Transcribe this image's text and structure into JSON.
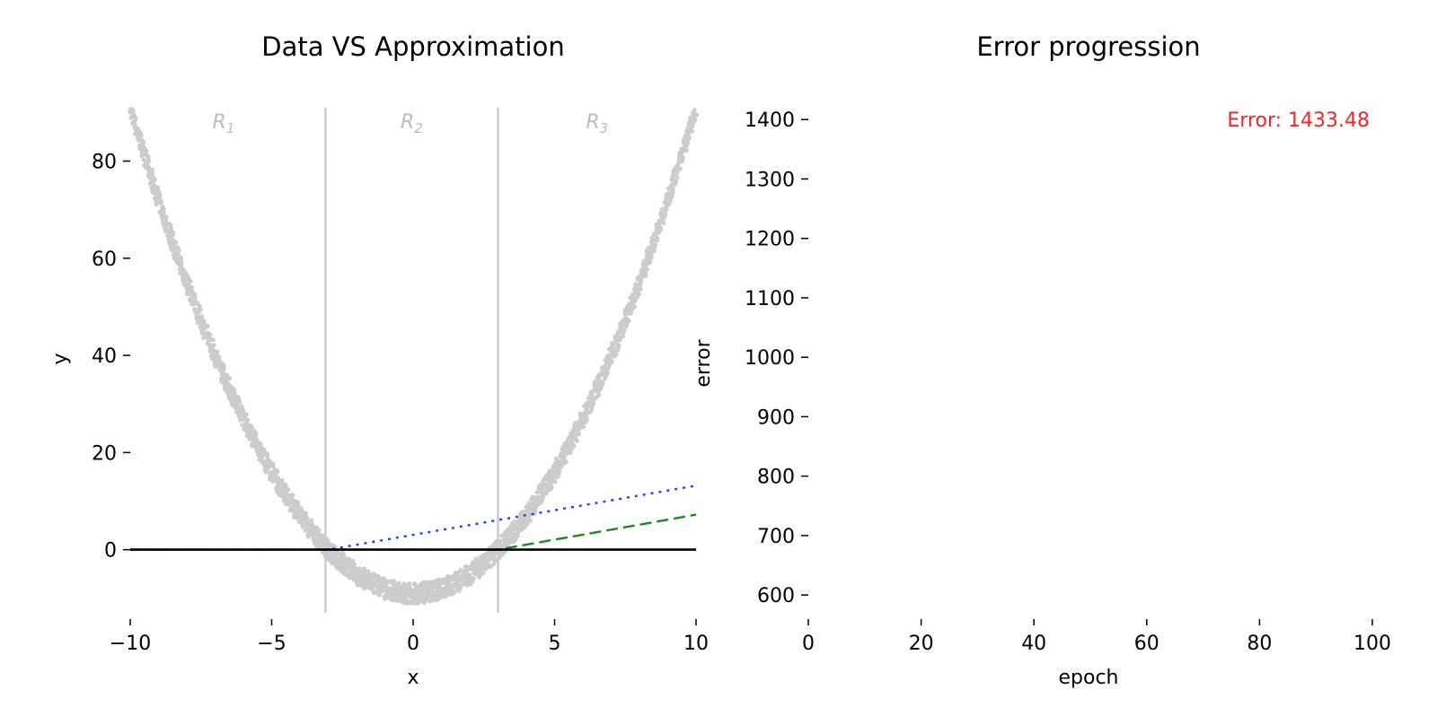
{
  "chart_data": [
    {
      "type": "line",
      "title": "Data VS Approximation",
      "xlabel": "x",
      "ylabel": "y",
      "xlim": [
        -10,
        10
      ],
      "ylim": [
        -13,
        91
      ],
      "xticks": [
        -10,
        -5,
        0,
        5,
        10
      ],
      "xtick_labels": [
        "−10",
        "−5",
        "0",
        "5",
        "10"
      ],
      "yticks": [
        0,
        20,
        40,
        60,
        80
      ],
      "ytick_labels": [
        "0",
        "20",
        "40",
        "60",
        "80"
      ],
      "region_boundaries": [
        -3.1,
        3.0
      ],
      "region_labels": [
        {
          "base": "R",
          "sub": "1",
          "x": -6.7
        },
        {
          "base": "R",
          "sub": "2",
          "x": -0.05
        },
        {
          "base": "R",
          "sub": "3",
          "x": 6.5
        }
      ],
      "scatter": {
        "name": "data",
        "color": "#cccccc",
        "description_fn": "y = x^2 - 9 (noisy)",
        "x_range": [
          -10,
          10
        ]
      },
      "series": [
        {
          "style": "dotted",
          "color": "#1f3fff",
          "x": [
            -10,
            -3.0,
            10
          ],
          "y": [
            0,
            0,
            13.2
          ]
        },
        {
          "style": "dashed",
          "color": "#1a8a1a",
          "x": [
            -10,
            3.0,
            10
          ],
          "y": [
            0,
            0,
            7.2
          ]
        },
        {
          "style": "solid",
          "color": "#000000",
          "x": [
            -10,
            10
          ],
          "y": [
            0,
            0
          ]
        }
      ]
    },
    {
      "type": "line",
      "title": "Error progression",
      "xlabel": "epoch",
      "ylabel": "error",
      "xlim": [
        0,
        100
      ],
      "ylim": [
        570,
        1420
      ],
      "xticks": [
        0,
        20,
        40,
        60,
        80,
        100
      ],
      "xtick_labels": [
        "0",
        "20",
        "40",
        "60",
        "80",
        "100"
      ],
      "yticks": [
        600,
        700,
        800,
        900,
        1000,
        1100,
        1200,
        1300,
        1400
      ],
      "ytick_labels": [
        "600",
        "700",
        "800",
        "900",
        "1000",
        "1100",
        "1200",
        "1300",
        "1400"
      ],
      "annotation": "Error: 1433.48",
      "annotation_color": "#ff2020",
      "series": []
    }
  ]
}
